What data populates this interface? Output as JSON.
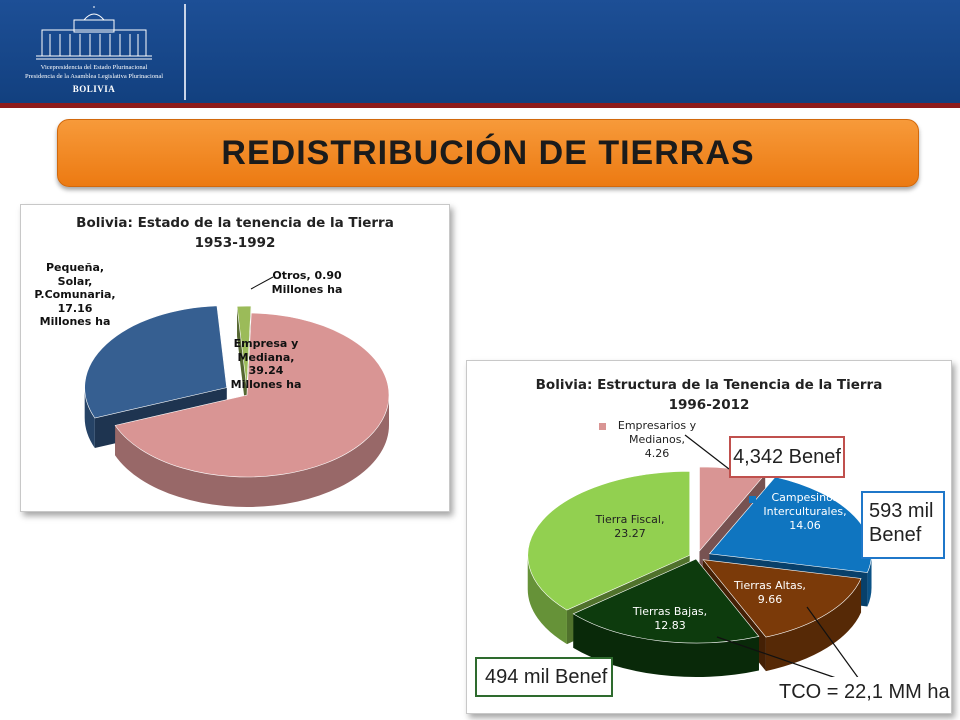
{
  "header": {
    "logo_line1": "Vicepresidencia del Estado Plurinacional",
    "logo_line2": "Presidencia de la Asamblea Legislativa Plurinacional",
    "logo_line3": "BOLIVIA"
  },
  "slide_title": "REDISTRIBUCIÓN DE TIERRAS",
  "colors": {
    "header": "#1a4a8f",
    "title_bar": "#f08a24",
    "accent_red": "#8e1b1b"
  },
  "chart_data": [
    {
      "type": "pie",
      "title": "Bolivia: Estado de la tenencia de la Tierra",
      "subtitle": "1953-1992",
      "categories": [
        "Empresa y Mediana",
        "Pequeña, Solar, P.Comunaria",
        "Otros"
      ],
      "values": [
        39.24,
        17.16,
        0.9
      ],
      "unit": "Millones ha",
      "colors": [
        "#d99594",
        "#365f91",
        "#9bbb59"
      ],
      "data_labels": {
        "empresa": [
          "Empresa y",
          "Mediana,",
          "39.24",
          "Millones ha"
        ],
        "pequena": [
          "Pequeña,",
          "Solar,",
          "P.Comunaria,",
          "17.16",
          "Millones ha"
        ],
        "otros": [
          "Otros, 0.90",
          "Millones ha"
        ]
      }
    },
    {
      "type": "pie",
      "title": "Bolivia: Estructura de la Tenencia de la Tierra",
      "subtitle": "1996-2012",
      "categories": [
        "Empresarios y Medianos",
        "Campesinos Interculturales",
        "Tierras Altas",
        "Tierras Bajas",
        "Tierra Fiscal"
      ],
      "values": [
        4.26,
        14.06,
        9.66,
        12.83,
        23.27
      ],
      "colors": [
        "#d99594",
        "#0f75c0",
        "#7b3a09",
        "#0d3b0d",
        "#92d050"
      ],
      "data_labels": {
        "empresarios": [
          "Empresarios y",
          "Medianos,",
          "4.26"
        ],
        "campesinos": [
          "Campesinos",
          "Interculturales,",
          "14.06"
        ],
        "tierras_altas": [
          "Tierras Altas,",
          "9.66"
        ],
        "tierras_bajas": [
          "Tierras Bajas,",
          "12.83"
        ],
        "tierra_fiscal": [
          "Tierra Fiscal,",
          "23.27"
        ]
      },
      "callouts": {
        "empresarios": "4,342 Benef",
        "campesinos_1": "593 mil",
        "campesinos_2": "Benef",
        "tierras_bajas": "494 mil Benef",
        "tco": "TCO = 22,1 MM ha"
      }
    }
  ]
}
